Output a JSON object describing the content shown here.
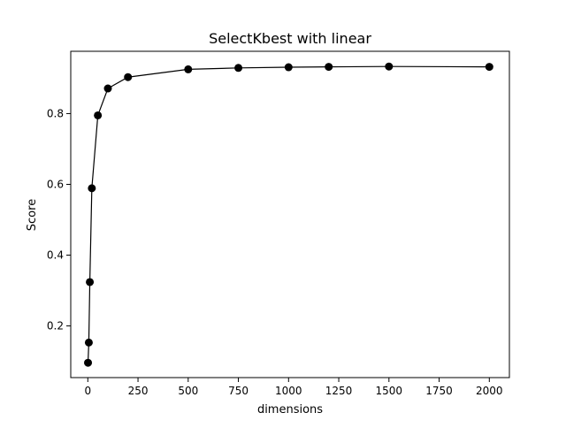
{
  "chart_data": {
    "type": "line",
    "title": "SelectKbest with linear",
    "xlabel": "dimensions",
    "ylabel": "Score",
    "x": [
      1,
      5,
      10,
      20,
      50,
      100,
      200,
      500,
      750,
      1000,
      1200,
      1500,
      2000
    ],
    "series": [
      {
        "values": [
          0.096,
          0.153,
          0.324,
          0.589,
          0.795,
          0.871,
          0.903,
          0.925,
          0.929,
          0.931,
          0.932,
          0.933,
          0.932
        ],
        "color": "#000000",
        "marker": "circle"
      }
    ],
    "xlim": [
      -85,
      2100
    ],
    "ylim": [
      0.054,
      0.976
    ],
    "xticks": [
      0,
      250,
      500,
      750,
      1000,
      1250,
      1500,
      1750,
      2000
    ],
    "yticks": [
      0.2,
      0.4,
      0.6,
      0.8
    ],
    "xtick_labels": [
      "0",
      "250",
      "500",
      "750",
      "1000",
      "1250",
      "1500",
      "1750",
      "2000"
    ],
    "ytick_labels": [
      "0.2",
      "0.4",
      "0.6",
      "0.8"
    ],
    "grid": false,
    "legend": "none"
  }
}
